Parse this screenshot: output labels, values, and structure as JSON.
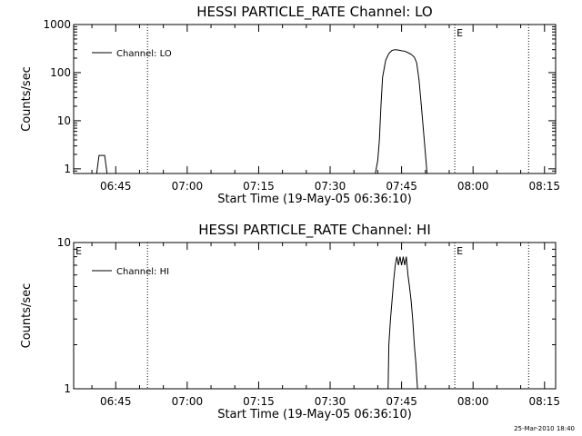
{
  "chart_data": [
    {
      "type": "line",
      "title": "HESSI PARTICLE_RATE Channel: LO",
      "xlabel": "Start Time (19-May-05 06:36:10)",
      "ylabel": "Counts/sec",
      "yscale": "log",
      "ylim": [
        0.8,
        1000
      ],
      "xlim": [
        "06:36:10",
        "08:17:20"
      ],
      "y_ticks": [
        {
          "value": 1,
          "label": "1"
        },
        {
          "value": 10,
          "label": "10"
        },
        {
          "value": 100,
          "label": "100"
        },
        {
          "value": 1000,
          "label": "1000"
        }
      ],
      "x_ticks": [
        {
          "value": "06:45",
          "label": "06:45"
        },
        {
          "value": "07:00",
          "label": "07:00"
        },
        {
          "value": "07:15",
          "label": "07:15"
        },
        {
          "value": "07:30",
          "label": "07:30"
        },
        {
          "value": "07:45",
          "label": "07:45"
        },
        {
          "value": "08:00",
          "label": "08:00"
        },
        {
          "value": "08:15",
          "label": "08:15"
        }
      ],
      "series": [
        {
          "name": "Channel: LO",
          "points": [
            [
              "06:41:00",
              0.8
            ],
            [
              "06:41:30",
              1.9
            ],
            [
              "06:42:40",
              1.9
            ],
            [
              "06:43:10",
              0.8
            ],
            [
              "07:39:30",
              0.8
            ],
            [
              "07:40:00",
              1.5
            ],
            [
              "07:40:20",
              4
            ],
            [
              "07:40:40",
              20
            ],
            [
              "07:41:00",
              80
            ],
            [
              "07:41:40",
              180
            ],
            [
              "07:42:20",
              250
            ],
            [
              "07:43:00",
              290
            ],
            [
              "07:43:40",
              300
            ],
            [
              "07:44:20",
              295
            ],
            [
              "07:45:00",
              285
            ],
            [
              "07:45:40",
              280
            ],
            [
              "07:46:20",
              260
            ],
            [
              "07:47:00",
              240
            ],
            [
              "07:47:40",
              210
            ],
            [
              "07:48:10",
              160
            ],
            [
              "07:48:40",
              70
            ],
            [
              "07:49:10",
              20
            ],
            [
              "07:49:40",
              5
            ],
            [
              "07:50:20",
              0.8
            ]
          ]
        }
      ],
      "markers": [
        {
          "time": "06:51:40",
          "label": ""
        },
        {
          "time": "07:56:10",
          "label": "E"
        },
        {
          "time": "08:11:40",
          "label": ""
        }
      ],
      "legend": "top-left",
      "grid": false
    },
    {
      "type": "line",
      "title": "HESSI PARTICLE_RATE Channel: HI",
      "xlabel": "Start Time (19-May-05 06:36:10)",
      "ylabel": "Counts/sec",
      "yscale": "log",
      "ylim": [
        1,
        10
      ],
      "xlim": [
        "06:36:10",
        "08:17:20"
      ],
      "y_ticks": [
        {
          "value": 1,
          "label": "1"
        },
        {
          "value": 10,
          "label": "10"
        }
      ],
      "x_ticks": [
        {
          "value": "06:45",
          "label": "06:45"
        },
        {
          "value": "07:00",
          "label": "07:00"
        },
        {
          "value": "07:15",
          "label": "07:15"
        },
        {
          "value": "07:30",
          "label": "07:30"
        },
        {
          "value": "07:45",
          "label": "07:45"
        },
        {
          "value": "08:00",
          "label": "08:00"
        },
        {
          "value": "08:15",
          "label": "08:15"
        }
      ],
      "series": [
        {
          "name": "Channel: HI",
          "points": [
            [
              "07:42:10",
              1
            ],
            [
              "07:42:20",
              2
            ],
            [
              "07:42:40",
              3
            ],
            [
              "07:43:00",
              4
            ],
            [
              "07:43:20",
              5.5
            ],
            [
              "07:43:40",
              7
            ],
            [
              "07:44:00",
              8
            ],
            [
              "07:44:20",
              7
            ],
            [
              "07:44:40",
              8
            ],
            [
              "07:45:00",
              7
            ],
            [
              "07:45:20",
              8
            ],
            [
              "07:45:40",
              7
            ],
            [
              "07:46:00",
              8
            ],
            [
              "07:46:20",
              6
            ],
            [
              "07:46:40",
              5
            ],
            [
              "07:47:00",
              4
            ],
            [
              "07:47:20",
              3
            ],
            [
              "07:47:40",
              2
            ],
            [
              "07:48:00",
              1.5
            ],
            [
              "07:48:20",
              1
            ]
          ]
        }
      ],
      "markers": [
        {
          "time": "06:36:10",
          "label": "E"
        },
        {
          "time": "06:51:40",
          "label": ""
        },
        {
          "time": "07:56:10",
          "label": "E"
        },
        {
          "time": "08:11:40",
          "label": ""
        }
      ],
      "legend": "top-left",
      "grid": false
    }
  ],
  "footer": {
    "timestamp": "25-Mar-2010 18:40"
  }
}
